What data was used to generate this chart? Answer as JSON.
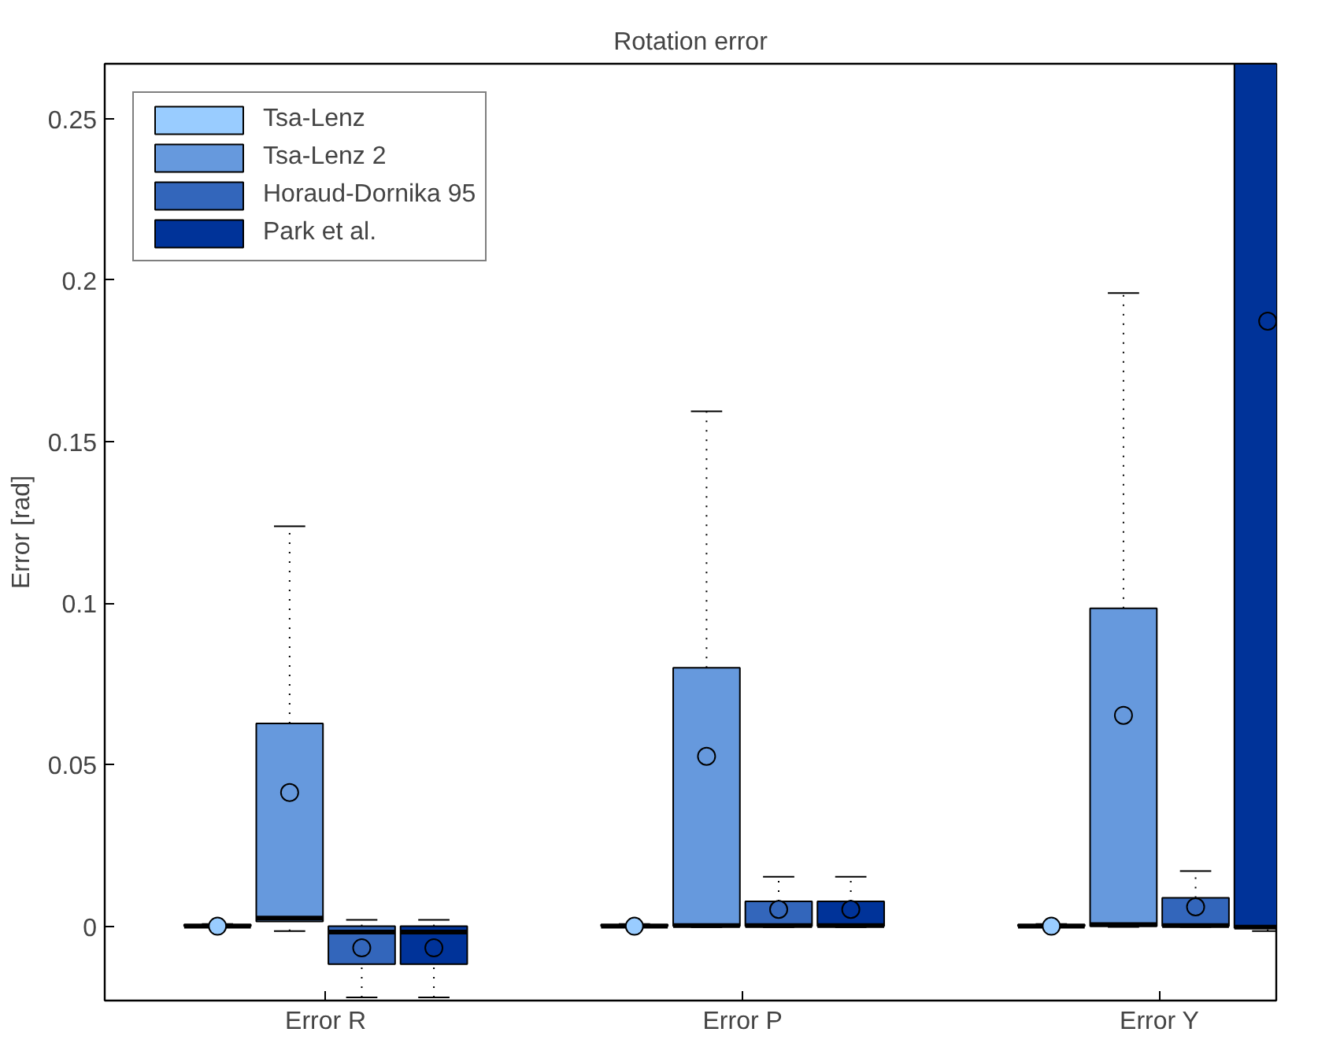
{
  "chart_data": {
    "type": "box",
    "title": "Rotation error",
    "ylabel": "Error [rad]",
    "categories": [
      "Error R",
      "Error P",
      "Error Y"
    ],
    "ylim": [
      -0.023,
      0.267
    ],
    "yticks": [
      0,
      0.05,
      0.1,
      0.15,
      0.2,
      0.25
    ],
    "grid": false,
    "legend": "top left",
    "series": [
      {
        "name": "Tsa-Lenz",
        "color": "#99ccff",
        "boxes": [
          {
            "low": -0.0003,
            "q1": 0,
            "median": 0,
            "q3": 0.0005,
            "high": 0.0007,
            "mean": 0
          },
          {
            "low": -0.0003,
            "q1": 0,
            "median": 0,
            "q3": 0.0005,
            "high": 0.0007,
            "mean": 0
          },
          {
            "low": -0.0003,
            "q1": 0,
            "median": 0,
            "q3": 0.0005,
            "high": 0.0007,
            "mean": 0
          }
        ]
      },
      {
        "name": "Tsa-Lenz 2",
        "color": "#6699dd",
        "boxes": [
          {
            "low": -0.0015,
            "q1": 0.0015,
            "median": 0.0025,
            "q3": 0.0628,
            "high": 0.1238,
            "mean": 0.0414
          },
          {
            "low": -0.0003,
            "q1": 0,
            "median": 0.0002,
            "q3": 0.08,
            "high": 0.1594,
            "mean": 0.0526
          },
          {
            "low": -0.0002,
            "q1": 0,
            "median": 0.0005,
            "q3": 0.0984,
            "high": 0.196,
            "mean": 0.0653
          }
        ]
      },
      {
        "name": "Horaud-Dornika 95",
        "color": "#3366bb",
        "boxes": [
          {
            "low": -0.022,
            "q1": -0.0117,
            "median": -0.0018,
            "q3": 0,
            "high": 0.002,
            "mean": -0.0067
          },
          {
            "low": -0.0003,
            "q1": 0,
            "median": 0.0002,
            "q3": 0.0077,
            "high": 0.0153,
            "mean": 0.0052
          },
          {
            "low": -0.0002,
            "q1": 0,
            "median": 0.0002,
            "q3": 0.0088,
            "high": 0.0171,
            "mean": 0.006
          }
        ]
      },
      {
        "name": "Park et al.",
        "color": "#003399",
        "boxes": [
          {
            "low": -0.022,
            "q1": -0.0117,
            "median": -0.0018,
            "q3": 0,
            "high": 0.002,
            "mean": -0.0067
          },
          {
            "low": -0.0003,
            "q1": 0,
            "median": 0.0002,
            "q3": 0.0077,
            "high": 0.0153,
            "mean": 0.0052
          },
          {
            "low": -0.0015,
            "q1": -0.0005,
            "median": -0.0003,
            "q3": 0.267,
            "high": 0.267,
            "mean": 0.1873
          }
        ]
      }
    ]
  }
}
